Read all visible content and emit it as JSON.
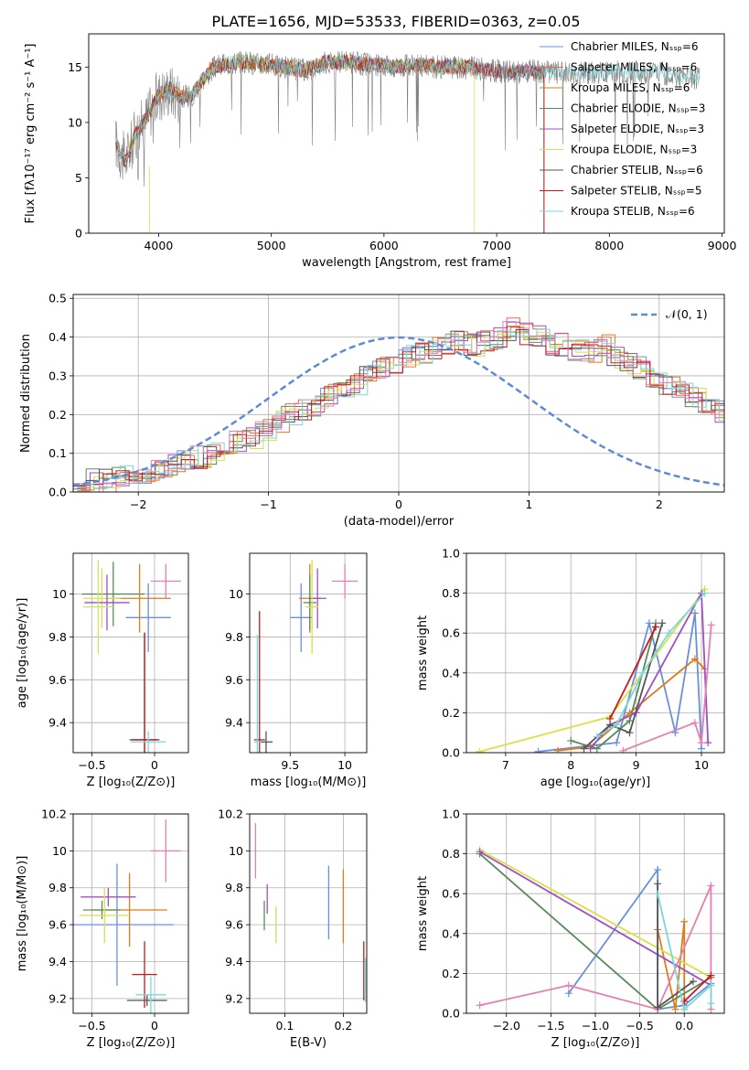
{
  "figure": {
    "title": "PLATE=1656, MJD=53533, FIBERID=0363, z=0.05"
  },
  "chart_data": [
    {
      "panel": "spectrum",
      "type": "line",
      "xlabel": "wavelength [Angstrom, rest frame]",
      "ylabel": "Flux [fλ10⁻¹⁷ erg cm⁻² s⁻¹ A⁻¹]",
      "xlim": [
        3380,
        9020
      ],
      "ylim": [
        0,
        18
      ],
      "xticks": [
        4000,
        5000,
        6000,
        7000,
        8000,
        9000
      ],
      "yticks": [
        0,
        5,
        10,
        15
      ],
      "grid": false,
      "legend_position": "upper-right",
      "data_label": "observed spectrum (gray)",
      "legend": [
        "Chabrier MILES, Nₛₛₚ=6",
        "Salpeter MILES, Nₛₛₚ=6",
        "Kroupa MILES, Nₛₛₚ=6",
        "Chabrier ELODIE, Nₛₛₚ=3",
        "Salpeter ELODIE, Nₛₛₚ=3",
        "Kroupa ELODIE, Nₛₛₚ=3",
        "Chabrier STELIB, Nₛₛₚ=6",
        "Salpeter STELIB, Nₛₛₚ=5",
        "Kroupa STELIB, Nₛₛₚ=6"
      ],
      "continuum": [
        [
          3620,
          8.2
        ],
        [
          3700,
          6.5
        ],
        [
          3800,
          9.0
        ],
        [
          3900,
          10.5
        ],
        [
          4000,
          12.5
        ],
        [
          4100,
          13.0
        ],
        [
          4200,
          12.3
        ],
        [
          4300,
          12.5
        ],
        [
          4400,
          14.0
        ],
        [
          4500,
          15.0
        ],
        [
          4700,
          15.5
        ],
        [
          4900,
          15.3
        ],
        [
          5100,
          15.0
        ],
        [
          5300,
          14.7
        ],
        [
          5500,
          15.5
        ],
        [
          5700,
          15.4
        ],
        [
          5900,
          15.2
        ],
        [
          6100,
          15.0
        ],
        [
          6300,
          15.2
        ],
        [
          6500,
          15.0
        ],
        [
          6700,
          15.0
        ],
        [
          6900,
          14.8
        ],
        [
          7100,
          14.5
        ],
        [
          7300,
          14.6
        ],
        [
          7420,
          14.5
        ]
      ],
      "continuum_tail": [
        [
          7420,
          14.5
        ],
        [
          7600,
          14.6
        ],
        [
          7800,
          14.5
        ],
        [
          8000,
          14.6
        ],
        [
          8200,
          14.5
        ],
        [
          8400,
          14.6
        ],
        [
          8600,
          14.2
        ],
        [
          8800,
          14.0
        ]
      ]
    },
    {
      "panel": "residual_histogram",
      "type": "line",
      "xlabel": "(data-model)/error",
      "ylabel": "Normed distribution",
      "xlim": [
        -2.5,
        2.5
      ],
      "ylim": [
        0,
        0.51
      ],
      "xticks": [
        -2,
        -1,
        0,
        1,
        2
      ],
      "yticks": [
        0.0,
        0.1,
        0.2,
        0.3,
        0.4,
        0.5
      ],
      "grid": true,
      "legend": [
        "𝒩(0, 1)"
      ],
      "legend_position": "upper-right",
      "bin_width": 0.1,
      "base_hist": [
        0.02,
        0.03,
        0.03,
        0.04,
        0.04,
        0.05,
        0.06,
        0.07,
        0.08,
        0.09,
        0.1,
        0.11,
        0.13,
        0.14,
        0.16,
        0.18,
        0.2,
        0.21,
        0.22,
        0.25,
        0.26,
        0.28,
        0.3,
        0.32,
        0.33,
        0.35,
        0.36,
        0.37,
        0.38,
        0.39,
        0.38,
        0.39,
        0.4,
        0.42,
        0.41,
        0.4,
        0.38,
        0.38,
        0.37,
        0.36,
        0.38,
        0.35,
        0.33,
        0.32,
        0.3,
        0.28,
        0.26,
        0.24,
        0.22,
        0.21,
        0.19,
        0.18,
        0.17,
        0.15,
        0.14,
        0.12,
        0.11,
        0.1,
        0.09,
        0.08,
        0.07,
        0.06,
        0.06,
        0.05,
        0.05,
        0.04,
        0.04,
        0.03,
        0.03,
        0.02,
        0.02,
        0.02,
        0.02,
        0.02,
        0.02,
        0.02,
        0.02,
        0.02,
        0.02,
        0.02
      ]
    },
    {
      "panel": "age_vs_Z",
      "type": "scatter",
      "xlabel": "Z [log₁₀(Z/Z⊙)]",
      "ylabel": "age [log₁₀(age/yr)]",
      "xlim": [
        -0.65,
        0.27
      ],
      "ylim": [
        9.26,
        10.19
      ],
      "xticks": [
        -0.5,
        0.0
      ],
      "yticks": [
        9.4,
        9.6,
        9.8,
        10.0
      ],
      "grid": true,
      "points": [
        {
          "x": -0.05,
          "y": 9.89,
          "xerr": 0.18,
          "yerr": 0.16
        },
        {
          "x": -0.33,
          "y": 10.0,
          "xerr": 0.25,
          "yerr": 0.15
        },
        {
          "x": -0.12,
          "y": 9.98,
          "xerr": 0.25,
          "yerr": 0.16
        },
        {
          "x": -0.42,
          "y": 9.98,
          "xerr": 0.15,
          "yerr": 0.14
        },
        {
          "x": -0.38,
          "y": 9.96,
          "xerr": 0.18,
          "yerr": 0.13
        },
        {
          "x": -0.45,
          "y": 9.94,
          "xerr": 0.12,
          "yerr": 0.22
        },
        {
          "x": -0.08,
          "y": 9.32,
          "xerr": 0.12,
          "yerr": 0.5
        },
        {
          "x": -0.08,
          "y": 9.32,
          "xerr": 0.1,
          "yerr": 0.5
        },
        {
          "x": -0.05,
          "y": 9.31,
          "xerr": 0.14,
          "yerr": 0.05
        },
        {
          "x": 0.09,
          "y": 10.06,
          "xerr": 0.12,
          "yerr": 0.08
        }
      ]
    },
    {
      "panel": "age_vs_mass",
      "type": "scatter",
      "xlabel": "mass [log₁₀(M/M⊙)]",
      "ylabel": "",
      "xlim": [
        9.13,
        10.2
      ],
      "ylim": [
        9.26,
        10.19
      ],
      "xticks": [
        9.5,
        10.0
      ],
      "yticks": [
        9.4,
        9.6,
        9.8,
        10.0
      ],
      "grid": true,
      "points": [
        {
          "x": 9.6,
          "y": 9.89,
          "xerr": 0.1,
          "yerr": 0.16
        },
        {
          "x": 9.68,
          "y": 9.98,
          "xerr": 0.1,
          "yerr": 0.16
        },
        {
          "x": 9.75,
          "y": 9.98,
          "xerr": 0.08,
          "yerr": 0.14
        },
        {
          "x": 9.68,
          "y": 9.96,
          "xerr": 0.06,
          "yerr": 0.13
        },
        {
          "x": 9.7,
          "y": 9.94,
          "xerr": 0.06,
          "yerr": 0.22
        },
        {
          "x": 9.22,
          "y": 9.32,
          "xerr": 0.05,
          "yerr": 0.6
        },
        {
          "x": 9.28,
          "y": 9.31,
          "xerr": 0.06,
          "yerr": 0.05
        },
        {
          "x": 9.2,
          "y": 9.31,
          "xerr": 0.03,
          "yerr": 0.5
        },
        {
          "x": 10.0,
          "y": 10.06,
          "xerr": 0.12,
          "yerr": 0.08
        }
      ]
    },
    {
      "panel": "mass_weight_vs_age",
      "type": "line",
      "xlabel": "age [log₁₀(age/yr)]",
      "ylabel": "mass weight",
      "xlim": [
        6.4,
        10.35
      ],
      "ylim": [
        0,
        1
      ],
      "xticks": [
        7,
        8,
        9,
        10
      ],
      "yticks": [
        0.0,
        0.2,
        0.4,
        0.6,
        0.8,
        1.0
      ],
      "grid": true,
      "series": [
        {
          "values": [
            [
              7.5,
              0.005
            ],
            [
              8.7,
              0.05
            ],
            [
              9.2,
              0.65
            ],
            [
              9.6,
              0.1
            ],
            [
              9.9,
              0.7
            ],
            [
              10.0,
              0.02
            ]
          ]
        },
        {
          "values": [
            [
              7.8,
              0.01
            ],
            [
              8.3,
              0.03
            ],
            [
              8.9,
              0.2
            ],
            [
              9.9,
              0.47
            ],
            [
              10.05,
              0.42
            ]
          ]
        },
        {
          "values": [
            [
              6.6,
              0.005
            ],
            [
              8.6,
              0.18
            ],
            [
              10.05,
              0.82
            ]
          ]
        },
        {
          "values": [
            [
              8.0,
              0.06
            ],
            [
              8.4,
              0.02
            ],
            [
              8.9,
              0.16
            ],
            [
              9.3,
              0.65
            ]
          ]
        },
        {
          "values": [
            [
              8.3,
              0.02
            ],
            [
              8.6,
              0.14
            ],
            [
              9.0,
              0.2
            ],
            [
              10.0,
              0.8
            ],
            [
              10.1,
              0.05
            ]
          ]
        },
        {
          "values": [
            [
              8.8,
              0.01
            ],
            [
              9.9,
              0.15
            ],
            [
              10.0,
              0.05
            ],
            [
              10.15,
              0.64
            ]
          ]
        },
        {
          "values": [
            [
              8.2,
              0.02
            ],
            [
              8.6,
              0.14
            ],
            [
              8.9,
              0.1
            ],
            [
              9.4,
              0.65
            ]
          ]
        },
        {
          "values": [
            [
              8.6,
              0.17
            ],
            [
              9.3,
              0.63
            ]
          ]
        },
        {
          "values": [
            [
              8.4,
              0.08
            ],
            [
              8.7,
              0.14
            ],
            [
              9.1,
              0.4
            ],
            [
              9.5,
              0.6
            ],
            [
              10.05,
              0.8
            ]
          ]
        }
      ]
    },
    {
      "panel": "mass_vs_Z",
      "type": "scatter",
      "xlabel": "Z [log₁₀(Z/Z⊙)]",
      "ylabel": "mass [log₁₀(M/M⊙)]",
      "xlim": [
        -0.65,
        0.27
      ],
      "ylim": [
        9.12,
        10.2
      ],
      "xticks": [
        -0.5,
        0.0
      ],
      "yticks": [
        9.2,
        9.4,
        9.6,
        9.8,
        10.0,
        10.2
      ],
      "grid": true,
      "points": [
        {
          "x": -0.3,
          "y": 9.6,
          "xerr": 0.45,
          "yerr": 0.33
        },
        {
          "x": -0.2,
          "y": 9.68,
          "xerr": 0.3,
          "yerr": 0.2
        },
        {
          "x": -0.37,
          "y": 9.75,
          "xerr": 0.22,
          "yerr": 0.05
        },
        {
          "x": -0.42,
          "y": 9.68,
          "xerr": 0.15,
          "yerr": 0.05
        },
        {
          "x": -0.4,
          "y": 9.65,
          "xerr": 0.2,
          "yerr": 0.15
        },
        {
          "x": -0.08,
          "y": 9.33,
          "xerr": 0.1,
          "yerr": 0.18
        },
        {
          "x": -0.06,
          "y": 9.19,
          "xerr": 0.16,
          "yerr": 0.03
        },
        {
          "x": -0.03,
          "y": 9.22,
          "xerr": 0.12,
          "yerr": 0.1
        },
        {
          "x": 0.09,
          "y": 10.0,
          "xerr": 0.12,
          "yerr": 0.17
        }
      ]
    },
    {
      "panel": "mass_vs_ebv",
      "type": "scatter",
      "xlabel": "E(B-V)",
      "ylabel": "",
      "xlim": [
        0.04,
        0.24
      ],
      "ylim": [
        9.12,
        10.2
      ],
      "xticks": [
        0.1,
        0.2
      ],
      "yticks": [
        9.2,
        9.4,
        9.6,
        9.8,
        10.0,
        10.2
      ],
      "grid": true,
      "points": [
        {
          "x": 0.05,
          "y": 10.0,
          "xerr": 0,
          "yerr": 0.15
        },
        {
          "x": 0.07,
          "y": 9.74,
          "xerr": 0,
          "yerr": 0.08
        },
        {
          "x": 0.065,
          "y": 9.65,
          "xerr": 0,
          "yerr": 0.08
        },
        {
          "x": 0.085,
          "y": 9.6,
          "xerr": 0,
          "yerr": 0.1
        },
        {
          "x": 0.175,
          "y": 9.72,
          "xerr": 0,
          "yerr": 0.2
        },
        {
          "x": 0.2,
          "y": 9.7,
          "xerr": 0,
          "yerr": 0.2
        },
        {
          "x": 0.235,
          "y": 9.35,
          "xerr": 0,
          "yerr": 0.16
        },
        {
          "x": 0.238,
          "y": 9.3,
          "xerr": 0,
          "yerr": 0.12
        }
      ]
    },
    {
      "panel": "mass_weight_vs_Z",
      "type": "line",
      "xlabel": "Z [log₁₀(Z/Z⊙)]",
      "ylabel": "mass weight",
      "xlim": [
        -2.45,
        0.45
      ],
      "ylim": [
        0,
        1
      ],
      "xticks": [
        -2.0,
        -1.5,
        -1.0,
        -0.5,
        0.0
      ],
      "yticks": [
        0.0,
        0.2,
        0.4,
        0.6,
        0.8,
        1.0
      ],
      "grid": true,
      "series": [
        {
          "values": [
            [
              -1.3,
              0.1
            ],
            [
              -0.3,
              0.72
            ],
            [
              -0.3,
              0.02
            ],
            [
              0.0,
              0.04
            ],
            [
              0.3,
              0.15
            ]
          ]
        },
        {
          "values": [
            [
              -0.3,
              0.42
            ],
            [
              -0.1,
              0.02
            ],
            [
              0.0,
              0.46
            ],
            [
              0.0,
              0.02
            ]
          ]
        },
        {
          "values": [
            [
              -2.3,
              0.82
            ],
            [
              0.3,
              0.18
            ]
          ]
        },
        {
          "values": [
            [
              -2.3,
              0.8
            ],
            [
              -0.3,
              0.02
            ],
            [
              0.3,
              0.18
            ]
          ]
        },
        {
          "values": [
            [
              -2.3,
              0.81
            ],
            [
              0.3,
              0.14
            ]
          ]
        },
        {
          "values": [
            [
              -2.3,
              0.04
            ],
            [
              -1.3,
              0.14
            ],
            [
              -0.3,
              0.02
            ],
            [
              0.3,
              0.64
            ],
            [
              0.3,
              0.02
            ]
          ]
        },
        {
          "values": [
            [
              -0.3,
              0.65
            ],
            [
              -0.3,
              0.03
            ],
            [
              0.1,
              0.16
            ]
          ]
        },
        {
          "values": [
            [
              0.0,
              0.06
            ],
            [
              0.3,
              0.19
            ]
          ]
        },
        {
          "values": [
            [
              -0.3,
              0.6
            ],
            [
              0.0,
              0.02
            ],
            [
              0.3,
              0.14
            ],
            [
              0.3,
              0.05
            ]
          ]
        }
      ]
    }
  ],
  "colors": [
    "#6a8fdd",
    "#f26a4b",
    "#e07b1a",
    "#5a8a5a",
    "#a04fc0",
    "#d8e04a",
    "#555555",
    "#c41a1a",
    "#7ad8d8",
    "#e67fb0"
  ],
  "panel_colors_age": [
    "#6a8fdd",
    "#5a8a5a",
    "#e07b1a",
    "#d8e04a",
    "#a04fc0",
    "#c8e86a",
    "#555555",
    "#c41a1a",
    "#7ad8d8",
    "#e67fb0"
  ],
  "panel_colors_mass": [
    "#6a8fdd",
    "#e07b1a",
    "#a04fc0",
    "#5a8a5a",
    "#d8e04a",
    "#c41a1a",
    "#555555",
    "#7ad8d8",
    "#e67fb0"
  ],
  "panel_colors_ebv": [
    "#e67fb0",
    "#a04fc0",
    "#5a8a5a",
    "#d8e04a",
    "#6a8fdd",
    "#e07b1a",
    "#c41a1a",
    "#7ad8d8"
  ],
  "panel_colors_mw": [
    "#6a8fdd",
    "#e07b1a",
    "#d8e04a",
    "#5a8a5a",
    "#a04fc0",
    "#e67fb0",
    "#555555",
    "#c41a1a",
    "#7ad8d8"
  ]
}
